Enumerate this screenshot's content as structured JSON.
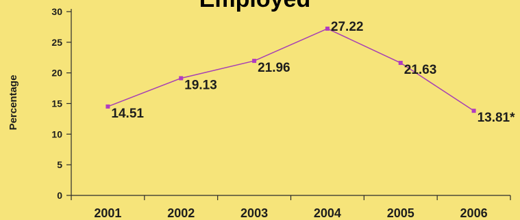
{
  "colors": {
    "background": "#f6e47a",
    "line": "#a63fb4",
    "marker": "#b13cc0",
    "axis": "#2a2a2a",
    "text": "#1d1d1d"
  },
  "chart_data": {
    "type": "line",
    "title": "Employed",
    "xlabel": "",
    "ylabel": "Percentage",
    "x": [
      "2001",
      "2002",
      "2003",
      "2004",
      "2005",
      "2006"
    ],
    "series": [
      {
        "values": [
          14.51,
          19.13,
          21.96,
          27.22,
          21.63,
          13.81
        ]
      }
    ],
    "data_labels": [
      "14.51",
      "19.13",
      "21.96",
      "27.22",
      "21.63",
      "13.81*"
    ],
    "ylim": [
      0,
      30
    ],
    "yticks": [
      0,
      5,
      10,
      15,
      20,
      25,
      30
    ],
    "grid": false,
    "legend": "none"
  }
}
